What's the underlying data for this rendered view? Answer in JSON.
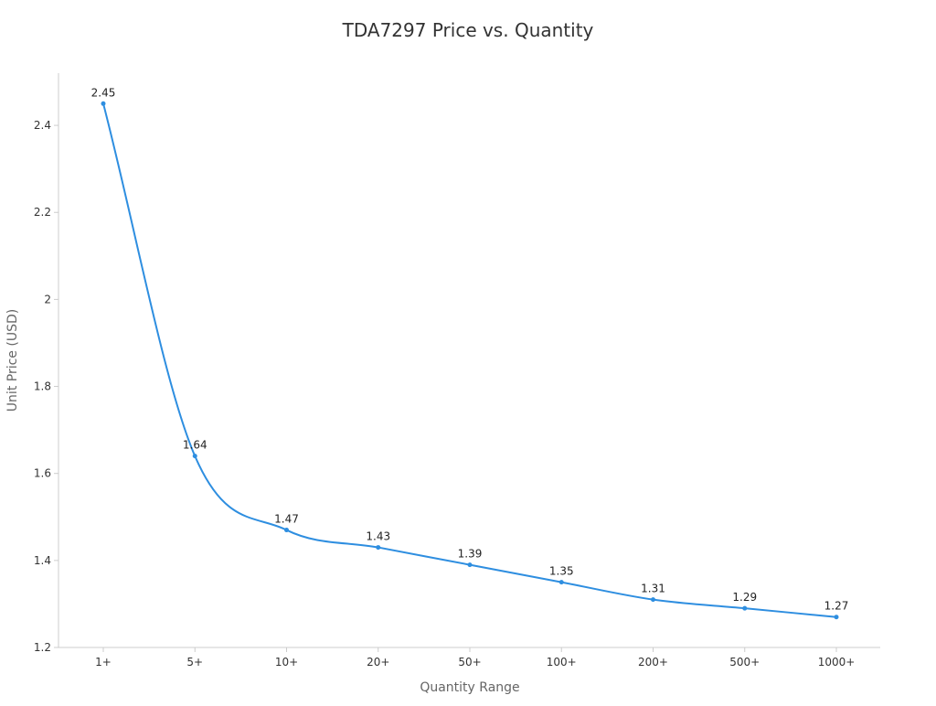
{
  "chart_data": {
    "type": "line",
    "title": "TDA7297 Price vs. Quantity",
    "xlabel": "Quantity Range",
    "ylabel": "Unit Price (USD)",
    "categories": [
      "1+",
      "5+",
      "10+",
      "20+",
      "50+",
      "100+",
      "200+",
      "500+",
      "1000+"
    ],
    "series": [
      {
        "values": [
          2.45,
          1.64,
          1.47,
          1.43,
          1.39,
          1.35,
          1.31,
          1.29,
          1.27
        ],
        "color": "#2e8ee0"
      }
    ],
    "ylim": [
      1.2,
      2.52
    ],
    "yticks": [
      1.2,
      1.4,
      1.6,
      1.8,
      2,
      2.2,
      2.4
    ],
    "ytick_labels": [
      "1.2",
      "1.4",
      "1.6",
      "1.8",
      "2",
      "2.2",
      "2.4"
    ],
    "data_labels": [
      "2.45",
      "1.64",
      "1.47",
      "1.43",
      "1.39",
      "1.35",
      "1.31",
      "1.29",
      "1.27"
    ],
    "grid": false,
    "legend": "none",
    "smooth": true
  }
}
